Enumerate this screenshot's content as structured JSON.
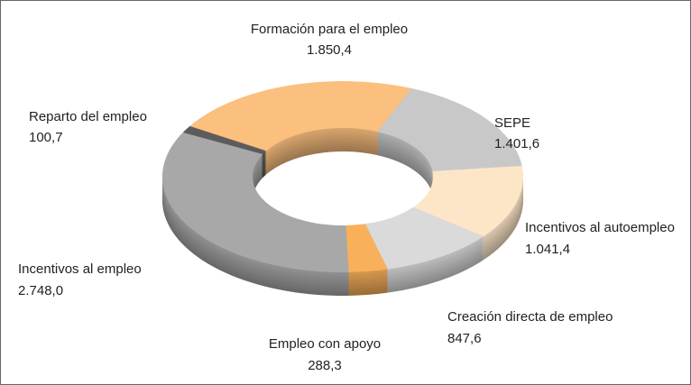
{
  "chart_data": {
    "type": "donut3d",
    "categories": [
      "Formación para el empleo",
      "SEPE",
      "Incentivos al autoempleo",
      "Creación directa de empleo",
      "Empleo con apoyo",
      "Incentivos al empleo",
      "Reparto del empleo"
    ],
    "values": [
      1850.4,
      1401.6,
      1041.4,
      847.6,
      288.3,
      2748.0,
      100.7
    ],
    "value_labels": [
      "1.850,4",
      "1.401,6",
      "1.041,4",
      "847,6",
      "288,3",
      "2.748,0",
      "100,7"
    ],
    "colors": [
      "#fbbf7e",
      "#c8c8c8",
      "#fde6c8",
      "#dadada",
      "#f8b05a",
      "#a8a8a8",
      "#5c5c5c"
    ]
  }
}
